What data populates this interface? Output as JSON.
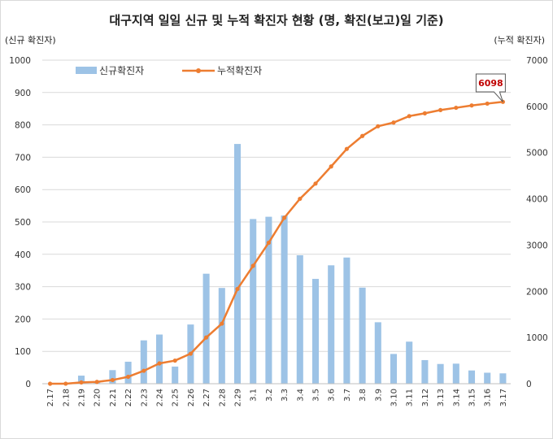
{
  "chart_data": {
    "type": "bar+line",
    "title": "대구지역 일일 신규 및 누적 확진자 현황 (명, 확진(보고)일 기준)",
    "left_axis_label": "(신규 확진자)",
    "right_axis_label": "(누적 확진자)",
    "categories": [
      "2.17",
      "2.18",
      "2.19",
      "2.20",
      "2.21",
      "2.22",
      "2.23",
      "2.24",
      "2.25",
      "2.26",
      "2.27",
      "2.28",
      "2.29",
      "3.1",
      "3.2",
      "3.3",
      "3.4",
      "3.5",
      "3.6",
      "3.7",
      "3.8",
      "3.9",
      "3.10",
      "3.11",
      "3.12",
      "3.13",
      "3.14",
      "3.15",
      "3.16",
      "3.17"
    ],
    "left_ylim": [
      0,
      1000
    ],
    "left_ticks": [
      0,
      100,
      200,
      300,
      400,
      500,
      600,
      700,
      800,
      900,
      1000
    ],
    "right_ylim": [
      0,
      7000
    ],
    "right_ticks": [
      0,
      1000,
      2000,
      3000,
      4000,
      5000,
      6000,
      7000
    ],
    "series": [
      {
        "name": "신규확진자",
        "type": "bar",
        "axis": "left",
        "color": "#9dc3e6",
        "values": [
          0,
          0,
          25,
          5,
          42,
          68,
          134,
          152,
          53,
          183,
          340,
          296,
          741,
          509,
          516,
          520,
          397,
          324,
          366,
          390,
          297,
          190,
          92,
          130,
          73,
          61,
          62,
          41,
          34,
          32
        ]
      },
      {
        "name": "누적확진자",
        "type": "line",
        "axis": "right",
        "color": "#ed7d31",
        "values": [
          0,
          1,
          28,
          40,
          80,
          150,
          280,
          440,
          500,
          650,
          1000,
          1300,
          2050,
          2550,
          3050,
          3590,
          4000,
          4330,
          4700,
          5080,
          5360,
          5570,
          5650,
          5790,
          5850,
          5920,
          5970,
          6020,
          6060,
          6098
        ]
      }
    ],
    "callout": {
      "index": 29,
      "label": "6098",
      "color": "#c00000"
    },
    "legend_position": "top-left",
    "grid": "horizontal"
  }
}
